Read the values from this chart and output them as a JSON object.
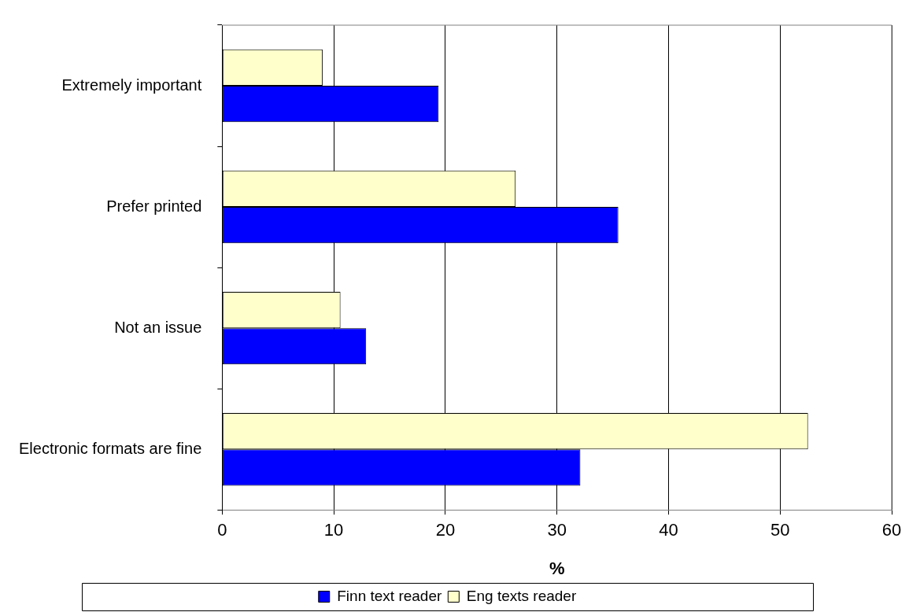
{
  "chart_data": {
    "type": "bar",
    "orientation": "horizontal",
    "xlabel": "%",
    "categories": [
      "Extremely important",
      "Prefer printed",
      "Not an issue",
      "Electronic formats are fine"
    ],
    "series": [
      {
        "name": "Finn text reader",
        "color": "#0000ff",
        "values": [
          19.4,
          35.5,
          12.9,
          32.1
        ]
      },
      {
        "name": "Eng texts reader",
        "color": "#ffffcc",
        "values": [
          9.0,
          26.3,
          10.6,
          52.5
        ]
      }
    ],
    "xlim": [
      0,
      60
    ],
    "xticks": [
      0,
      10,
      20,
      30,
      40,
      50,
      60
    ],
    "grid": "x",
    "legend": "bottom"
  }
}
